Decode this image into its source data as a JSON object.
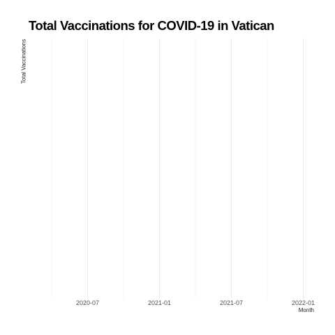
{
  "chart_data": {
    "type": "line",
    "title": "Total Vaccinations for COVID-19 in Vatican",
    "xlabel": "Month",
    "ylabel": "Total Vaccinations",
    "x_ticks": [
      "2020-07",
      "2021-01",
      "2021-07",
      "2022-01"
    ],
    "xlim": [
      "2020-04",
      "2022-02"
    ],
    "series": [],
    "grid": true,
    "legend": "none"
  }
}
